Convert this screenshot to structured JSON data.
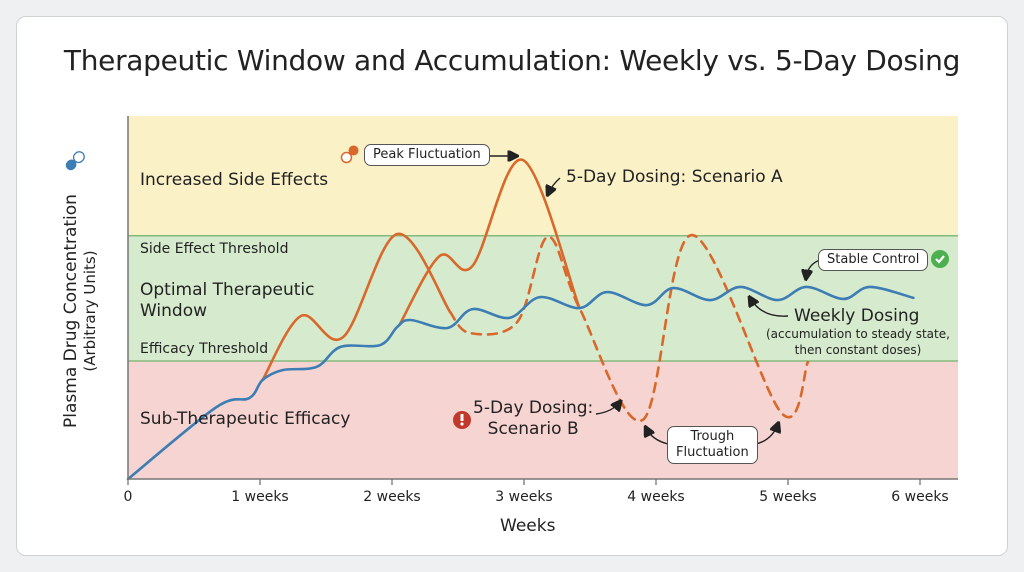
{
  "chart_data": {
    "type": "line",
    "title": "Therapeutic Window and Accumulation: Weekly vs. 5-Day Dosing",
    "xlabel": "Weeks",
    "ylabel": "Plasma Drug Concentration",
    "ylabel_sub": "(Arbitrary Units)",
    "xlim": [
      0,
      6
    ],
    "ylim": [
      0,
      100
    ],
    "x_ticks": [
      0,
      1,
      2,
      3,
      4,
      5,
      6
    ],
    "x_tick_labels": [
      "0",
      "1 weeks",
      "2 weeks",
      "3 weeks",
      "4 weeks",
      "5 weeks",
      "6 weeks"
    ],
    "grid": false,
    "bands": [
      {
        "label": "Increased Side Effects",
        "from": 67,
        "to": 100,
        "color": "#fbf1c6"
      },
      {
        "label": "Optimal Therapeutic Window",
        "from": 32.5,
        "to": 67,
        "color": "#d6ebce"
      },
      {
        "label": "Sub-Therapeutic Efficacy",
        "from": 0,
        "to": 32.5,
        "color": "#f6d4d1"
      }
    ],
    "thresholds": [
      {
        "label": "Side Effect Threshold",
        "value": 67
      },
      {
        "label": "Efficacy Threshold",
        "value": 32.5
      }
    ],
    "series": [
      {
        "name": "Weekly Dosing",
        "subtitle_1": "(accumulation to steady state,",
        "subtitle_2": "then constant doses)",
        "color": "#3d7db4",
        "style": "solid",
        "segments": [
          [
            [
              0,
              0
            ],
            [
              0.67,
              19.8
            ],
            [
              0.92,
              22.3
            ],
            [
              1.02,
              27.3
            ],
            [
              1.17,
              30.0
            ],
            [
              1.43,
              30.9
            ],
            [
              1.61,
              36.4
            ],
            [
              1.91,
              36.9
            ],
            [
              2.04,
              41.9
            ],
            [
              2.14,
              43.8
            ],
            [
              2.42,
              41.6
            ],
            [
              2.61,
              46.8
            ],
            [
              2.89,
              44.4
            ],
            [
              3.12,
              50.1
            ],
            [
              3.42,
              47.1
            ],
            [
              3.63,
              51.5
            ],
            [
              3.93,
              47.9
            ],
            [
              4.13,
              52.6
            ],
            [
              4.41,
              49.3
            ],
            [
              4.64,
              52.9
            ],
            [
              4.92,
              49.3
            ],
            [
              5.14,
              52.9
            ],
            [
              5.42,
              49.6
            ],
            [
              5.62,
              52.9
            ],
            [
              5.95,
              49.9
            ]
          ]
        ]
      },
      {
        "name": "5-Day Dosing: Scenario A",
        "color": "#d8692b",
        "style": "solid",
        "segments": [
          [
            [
              1.02,
              27.3
            ],
            [
              1.31,
              44.9
            ],
            [
              1.63,
              39.1
            ],
            [
              2.04,
              67.5
            ],
            [
              2.44,
              46.0
            ]
          ],
          [
            [
              2.06,
              42.7
            ],
            [
              2.36,
              61.4
            ],
            [
              2.61,
              58.7
            ],
            [
              2.99,
              87.9
            ],
            [
              3.42,
              47.1
            ]
          ]
        ]
      },
      {
        "name": "5-Day Dosing:",
        "name_2": "Scenario B",
        "color": "#d8692b",
        "style": "dashed",
        "segments": [
          [
            [
              2.44,
              46.0
            ],
            [
              2.59,
              40.2
            ],
            [
              2.95,
              43.3
            ],
            [
              3.18,
              66.7
            ],
            [
              3.42,
              47.1
            ],
            [
              3.9,
              16.3
            ],
            [
              4.27,
              67.2
            ],
            [
              4.95,
              18.2
            ],
            [
              5.15,
              32.2
            ]
          ]
        ]
      }
    ],
    "annotations": {
      "peak": "Peak Fluctuation",
      "trough_1": "Trough",
      "trough_2": "Fluctuation",
      "stable": "Stable Control"
    },
    "icons": {
      "ylabel_icon": "capsule-icon",
      "peak_icon": "capsule-icon",
      "scenario_b_icon": "alert-icon",
      "stable_icon": "check-circle-icon"
    }
  }
}
